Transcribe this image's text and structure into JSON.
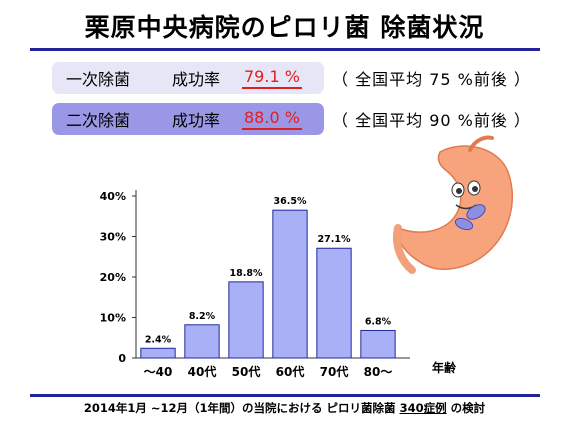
{
  "title": "栗原中央病院のピロリ菌 除菌状況",
  "rates": [
    {
      "method": "一次除菌",
      "label": "成功率",
      "rate": "79.1 %",
      "national_prefix": "（ 全国平均 ",
      "national_value": "75 %",
      "national_suffix": "前後 ）"
    },
    {
      "method": "二次除菌",
      "label": "成功率",
      "rate": "88.0 %",
      "national_prefix": "（ 全国平均 ",
      "national_value": "90 %",
      "national_suffix": "前後 ）"
    }
  ],
  "chart_data": {
    "type": "bar",
    "categories": [
      "～40",
      "40代",
      "50代",
      "60代",
      "70代",
      "80～"
    ],
    "values": [
      2.4,
      8.2,
      18.8,
      36.5,
      27.1,
      6.8
    ],
    "value_labels": [
      "2.4%",
      "8.2%",
      "18.8%",
      "36.5%",
      "27.1%",
      "6.8%"
    ],
    "ylim": [
      0,
      40
    ],
    "yticks": [
      0,
      10,
      20,
      30,
      40
    ],
    "ytick_labels": [
      "0",
      "10%",
      "20%",
      "30%",
      "40%"
    ],
    "xlabel": "年齢",
    "ylabel": "",
    "bar_color": "#aab0f5",
    "bar_edge": "#1e2a9c",
    "grid": false
  },
  "footer": {
    "prefix": "2014年1月 ~12月（1年間）の当院における ピロリ菌除菌 ",
    "highlight": "340症例",
    "suffix": " の検討"
  },
  "colors": {
    "rule": "#23239a",
    "rate": "#e02020"
  },
  "icons": {
    "stomach": "stomach-illustration"
  }
}
